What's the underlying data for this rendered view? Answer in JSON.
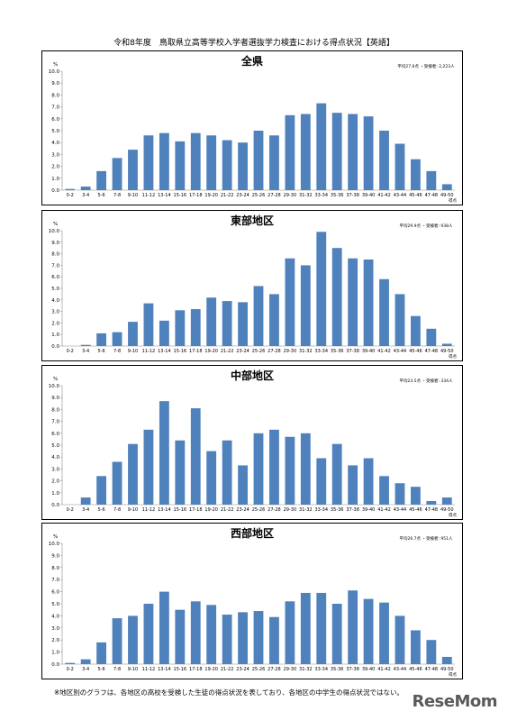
{
  "document": {
    "title": "令和8年度　鳥取県立高等学校入学者選抜学力検査における得点状況【英語】",
    "footnote": "※地区別のグラフは、各地区の高校を受検した生徒の得点状況を表しており、各地区の中学生の得点状況ではない。",
    "watermark": "ReseMom"
  },
  "chart_data": [
    {
      "type": "bar",
      "title": "全県",
      "stats": "平均27.6点 ・受検者: 2,223人",
      "ylabel": "%",
      "xlabel": "得点",
      "ylim": [
        0,
        10
      ],
      "yticks": [
        "0.0",
        "1.0",
        "2.0",
        "3.0",
        "4.0",
        "5.0",
        "6.0",
        "7.0",
        "8.0",
        "9.0",
        "10.0"
      ],
      "bar_color": "#4f81bd",
      "categories": [
        "0-2",
        "3-4",
        "5-6",
        "7-8",
        "9-10",
        "11-12",
        "13-14",
        "15-16",
        "17-18",
        "19-20",
        "21-22",
        "23-24",
        "25-26",
        "27-28",
        "29-30",
        "31-32",
        "33-34",
        "35-36",
        "37-38",
        "39-40",
        "41-42",
        "43-44",
        "45-46",
        "47-48",
        "49-50"
      ],
      "values": [
        0.1,
        0.3,
        1.6,
        2.7,
        3.4,
        4.6,
        4.8,
        4.1,
        4.8,
        4.6,
        4.2,
        4.0,
        5.0,
        4.6,
        6.3,
        6.4,
        7.3,
        6.5,
        6.4,
        6.2,
        5.0,
        3.9,
        2.6,
        1.6,
        0.5
      ]
    },
    {
      "type": "bar",
      "title": "東部地区",
      "stats": "平均29.9点 ・受検者: 938人",
      "ylabel": "%",
      "xlabel": "得点",
      "ylim": [
        0,
        10
      ],
      "yticks": [
        "0.0",
        "1.0",
        "2.0",
        "3.0",
        "4.0",
        "5.0",
        "6.0",
        "7.0",
        "8.0",
        "9.0",
        "10.0"
      ],
      "bar_color": "#4f81bd",
      "categories": [
        "0-2",
        "3-4",
        "5-6",
        "7-8",
        "9-10",
        "11-12",
        "13-14",
        "15-16",
        "17-18",
        "19-20",
        "21-22",
        "23-24",
        "25-26",
        "27-28",
        "29-30",
        "31-32",
        "33-34",
        "35-36",
        "37-38",
        "39-40",
        "41-42",
        "43-44",
        "45-46",
        "47-48",
        "49-50"
      ],
      "values": [
        0.0,
        0.1,
        1.1,
        1.2,
        2.1,
        3.7,
        2.2,
        3.1,
        3.2,
        4.2,
        3.9,
        3.8,
        5.2,
        4.5,
        7.6,
        7.0,
        9.9,
        8.5,
        7.6,
        7.5,
        5.8,
        4.5,
        2.6,
        1.5,
        0.2
      ]
    },
    {
      "type": "bar",
      "title": "中部地区",
      "stats": "平均23.5点 ・受検者: 334人",
      "ylabel": "%",
      "xlabel": "得点",
      "ylim": [
        0,
        10
      ],
      "yticks": [
        "0.0",
        "1.0",
        "2.0",
        "3.0",
        "4.0",
        "5.0",
        "6.0",
        "7.0",
        "8.0",
        "9.0",
        "10.0"
      ],
      "bar_color": "#4f81bd",
      "categories": [
        "0-2",
        "3-4",
        "5-6",
        "7-8",
        "9-10",
        "11-12",
        "13-14",
        "15-16",
        "17-18",
        "19-20",
        "21-22",
        "23-24",
        "25-26",
        "27-28",
        "29-30",
        "31-32",
        "33-34",
        "35-36",
        "37-38",
        "39-40",
        "41-42",
        "43-44",
        "45-46",
        "47-48",
        "49-50"
      ],
      "values": [
        0.0,
        0.6,
        2.4,
        3.6,
        5.1,
        6.3,
        8.7,
        5.4,
        8.1,
        4.5,
        5.4,
        3.3,
        6.0,
        6.3,
        5.7,
        6.0,
        3.9,
        5.1,
        3.3,
        3.9,
        2.4,
        1.8,
        1.5,
        0.3,
        0.6
      ]
    },
    {
      "type": "bar",
      "title": "西部地区",
      "stats": "平均26.7点 ・受検者: 951人",
      "ylabel": "%",
      "xlabel": "得点",
      "ylim": [
        0,
        10
      ],
      "yticks": [
        "0.0",
        "1.0",
        "2.0",
        "3.0",
        "4.0",
        "5.0",
        "6.0",
        "7.0",
        "8.0",
        "9.0",
        "10.0"
      ],
      "bar_color": "#4f81bd",
      "categories": [
        "0-2",
        "3-4",
        "5-6",
        "7-8",
        "9-10",
        "11-12",
        "13-14",
        "15-16",
        "17-18",
        "19-20",
        "21-22",
        "23-24",
        "25-26",
        "27-28",
        "29-30",
        "31-32",
        "33-34",
        "35-36",
        "37-38",
        "39-40",
        "41-42",
        "43-44",
        "45-46",
        "47-48",
        "49-50"
      ],
      "values": [
        0.1,
        0.4,
        1.8,
        3.8,
        4.0,
        5.0,
        6.0,
        4.5,
        5.2,
        4.9,
        4.1,
        4.3,
        4.4,
        3.9,
        5.2,
        5.9,
        5.9,
        5.0,
        6.1,
        5.4,
        5.1,
        4.0,
        2.8,
        2.0,
        0.6
      ]
    }
  ]
}
